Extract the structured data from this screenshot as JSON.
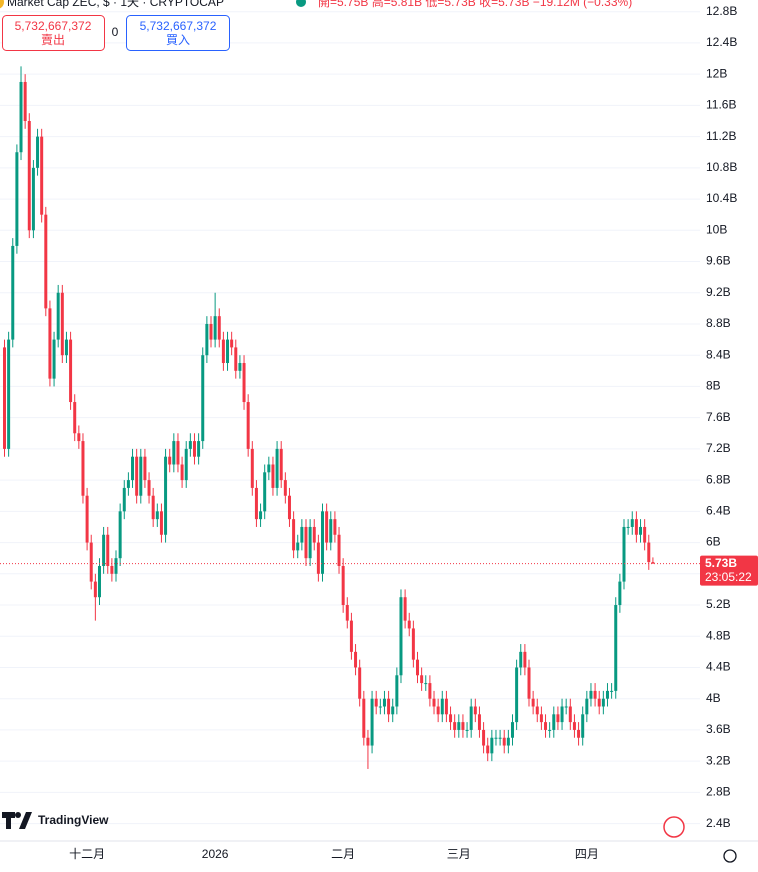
{
  "header": {
    "symbol": "Market Cap ZEC, $ · 1天 · CRYPTOCAP",
    "ohlc": "開=5.75B 高=5.81B 低=5.73B 收=5.73B −19.12M (−0.33%)"
  },
  "trade": {
    "sell_price": "5,732,667,372",
    "sell_label": "賣出",
    "spread": "0",
    "buy_price": "5,732,667,372",
    "buy_label": "買入"
  },
  "brand": "TradingView",
  "chart_data": {
    "type": "candlestick",
    "categories": [
      null,
      null,
      null,
      null,
      null,
      null,
      null,
      null,
      null,
      null,
      null,
      null,
      null,
      null,
      null,
      null,
      null,
      null,
      null,
      null,
      "十二月",
      null,
      null,
      null,
      null,
      null,
      null,
      null,
      null,
      null,
      null,
      null,
      null,
      null,
      null,
      null,
      null,
      null,
      null,
      null,
      null,
      null,
      null,
      null,
      null,
      null,
      null,
      null,
      null,
      null,
      null,
      "2026",
      null,
      null,
      null,
      null,
      null,
      null,
      null,
      null,
      null,
      null,
      null,
      null,
      null,
      null,
      null,
      null,
      null,
      null,
      null,
      null,
      null,
      null,
      null,
      null,
      null,
      null,
      null,
      null,
      null,
      null,
      "二月",
      null,
      null,
      null,
      null,
      null,
      null,
      null,
      null,
      null,
      null,
      null,
      null,
      null,
      null,
      null,
      null,
      null,
      null,
      null,
      null,
      null,
      null,
      null,
      null,
      null,
      null,
      null,
      "三月",
      null,
      null,
      null,
      null,
      null,
      null,
      null,
      null,
      null,
      null,
      null,
      null,
      null,
      null,
      null,
      null,
      null,
      null,
      null,
      null,
      null,
      null,
      null,
      null,
      null,
      null,
      null,
      null,
      null,
      null,
      "四月",
      null,
      null,
      null,
      null,
      null,
      null,
      null,
      null,
      null,
      null,
      null,
      null,
      null,
      null,
      null,
      null
    ],
    "open": [
      8.5,
      7.2,
      8.6,
      9.8,
      11.0,
      11.9,
      11.4,
      10.0,
      10.8,
      11.2,
      10.2,
      9.0,
      8.1,
      8.6,
      9.2,
      8.4,
      8.6,
      7.8,
      7.4,
      7.3,
      6.6,
      6.0,
      5.5,
      5.3,
      5.7,
      6.1,
      5.7,
      5.6,
      5.8,
      6.4,
      6.7,
      6.8,
      7.1,
      6.6,
      7.1,
      6.8,
      6.6,
      6.3,
      6.4,
      6.1,
      7.1,
      7.0,
      7.3,
      7.0,
      6.8,
      7.2,
      7.3,
      7.1,
      7.3,
      8.4,
      8.8,
      8.6,
      8.9,
      8.6,
      8.3,
      8.6,
      8.5,
      8.2,
      8.3,
      7.8,
      7.2,
      6.7,
      6.3,
      6.4,
      6.9,
      7.0,
      6.7,
      7.2,
      6.8,
      6.6,
      6.3,
      5.9,
      6.0,
      6.2,
      5.8,
      6.2,
      6.0,
      5.6,
      6.4,
      6.0,
      6.3,
      6.1,
      5.7,
      5.2,
      5.0,
      4.6,
      4.4,
      4.0,
      3.5,
      3.4,
      4.0,
      3.9,
      3.9,
      4.0,
      3.8,
      3.9,
      4.3,
      5.3,
      5.0,
      4.9,
      4.5,
      4.3,
      4.2,
      4.2,
      4.0,
      3.9,
      3.8,
      4.0,
      3.8,
      3.7,
      3.6,
      3.7,
      3.6,
      3.6,
      3.9,
      3.8,
      3.6,
      3.4,
      3.3,
      3.5,
      3.5,
      3.5,
      3.4,
      3.5,
      3.7,
      4.4,
      4.6,
      4.4,
      4.0,
      3.9,
      3.8,
      3.7,
      3.6,
      3.6,
      3.8,
      3.7,
      3.9,
      3.9,
      3.7,
      3.6,
      3.5,
      3.8,
      4.0,
      4.1,
      4.0,
      3.9,
      4.0,
      4.1,
      4.1,
      5.2,
      5.5,
      6.2,
      6.2,
      6.3,
      6.1,
      6.2,
      6.0,
      5.75
    ],
    "high": [
      8.6,
      8.7,
      9.9,
      11.1,
      12.1,
      12.0,
      11.5,
      10.9,
      11.3,
      11.3,
      10.3,
      9.1,
      8.7,
      9.3,
      9.3,
      8.7,
      8.7,
      7.9,
      7.5,
      7.4,
      6.7,
      6.1,
      5.6,
      5.8,
      6.2,
      6.2,
      5.8,
      5.9,
      6.5,
      6.8,
      6.9,
      7.2,
      7.2,
      7.2,
      7.2,
      6.9,
      6.7,
      6.5,
      6.5,
      7.2,
      7.2,
      7.4,
      7.4,
      7.1,
      7.3,
      7.4,
      7.4,
      7.4,
      8.5,
      8.9,
      8.9,
      9.2,
      9.0,
      8.7,
      8.7,
      8.7,
      8.6,
      8.4,
      8.4,
      7.9,
      7.3,
      6.8,
      6.5,
      7.0,
      7.1,
      7.1,
      7.3,
      7.3,
      6.9,
      6.7,
      6.4,
      6.1,
      6.3,
      6.3,
      6.3,
      6.3,
      6.1,
      6.5,
      6.5,
      6.4,
      6.4,
      6.2,
      5.8,
      5.3,
      5.1,
      4.7,
      4.5,
      4.1,
      3.6,
      4.1,
      4.1,
      4.0,
      4.1,
      4.1,
      4.0,
      4.4,
      5.4,
      5.4,
      5.1,
      5.0,
      4.6,
      4.4,
      4.3,
      4.3,
      4.1,
      4.0,
      4.1,
      4.1,
      3.9,
      3.8,
      3.8,
      3.8,
      3.7,
      4.0,
      4.0,
      3.9,
      3.7,
      3.5,
      3.6,
      3.6,
      3.6,
      3.6,
      3.6,
      3.8,
      4.5,
      4.7,
      4.7,
      4.5,
      4.1,
      4.0,
      3.9,
      3.8,
      3.7,
      3.9,
      3.9,
      4.0,
      4.0,
      4.0,
      3.8,
      3.7,
      3.9,
      4.1,
      4.2,
      4.2,
      4.1,
      4.1,
      4.2,
      4.2,
      5.3,
      5.6,
      6.3,
      6.3,
      6.4,
      6.4,
      6.3,
      6.3,
      6.1,
      5.81
    ],
    "low": [
      7.1,
      7.1,
      8.5,
      9.7,
      10.9,
      11.3,
      9.9,
      9.9,
      10.7,
      10.1,
      8.9,
      8.0,
      8.0,
      8.5,
      8.3,
      8.3,
      7.7,
      7.3,
      7.2,
      6.5,
      5.9,
      5.4,
      5.0,
      5.2,
      5.6,
      5.6,
      5.5,
      5.5,
      5.7,
      6.3,
      6.6,
      6.7,
      6.5,
      6.5,
      6.7,
      6.5,
      6.2,
      6.2,
      6.0,
      6.0,
      6.9,
      6.9,
      6.9,
      6.7,
      6.7,
      7.1,
      7.0,
      7.0,
      7.2,
      8.3,
      8.5,
      8.5,
      8.5,
      8.2,
      8.2,
      8.4,
      8.1,
      8.1,
      7.7,
      7.1,
      6.6,
      6.2,
      6.2,
      6.3,
      6.8,
      6.6,
      6.6,
      6.7,
      6.5,
      6.2,
      5.8,
      5.8,
      5.9,
      5.7,
      5.7,
      5.9,
      5.5,
      5.5,
      5.9,
      5.9,
      6.0,
      5.6,
      5.1,
      4.9,
      4.5,
      4.3,
      3.9,
      3.4,
      3.1,
      3.3,
      3.8,
      3.8,
      3.8,
      3.7,
      3.7,
      3.8,
      4.2,
      4.9,
      4.8,
      4.4,
      4.2,
      4.1,
      4.1,
      3.9,
      3.8,
      3.7,
      3.7,
      3.7,
      3.6,
      3.5,
      3.5,
      3.5,
      3.5,
      3.5,
      3.7,
      3.5,
      3.3,
      3.2,
      3.2,
      3.4,
      3.4,
      3.3,
      3.3,
      3.4,
      3.6,
      4.3,
      4.3,
      3.9,
      3.8,
      3.7,
      3.6,
      3.5,
      3.5,
      3.5,
      3.6,
      3.6,
      3.8,
      3.6,
      3.5,
      3.4,
      3.4,
      3.7,
      3.9,
      3.9,
      3.8,
      3.8,
      3.9,
      4.0,
      4.0,
      5.1,
      5.4,
      6.1,
      6.1,
      6.0,
      6.0,
      5.9,
      5.65,
      5.73
    ],
    "close": [
      7.2,
      8.6,
      9.8,
      11.0,
      11.9,
      11.4,
      10.0,
      10.8,
      11.2,
      10.2,
      9.0,
      8.1,
      8.6,
      9.2,
      8.4,
      8.6,
      7.8,
      7.4,
      7.3,
      6.6,
      6.0,
      5.5,
      5.3,
      5.7,
      6.1,
      5.7,
      5.6,
      5.8,
      6.4,
      6.7,
      6.8,
      7.1,
      6.6,
      7.1,
      6.8,
      6.6,
      6.3,
      6.4,
      6.1,
      7.1,
      7.0,
      7.3,
      7.0,
      6.8,
      7.2,
      7.3,
      7.1,
      7.3,
      8.4,
      8.8,
      8.6,
      8.9,
      8.6,
      8.3,
      8.6,
      8.5,
      8.2,
      8.3,
      7.8,
      7.2,
      6.7,
      6.3,
      6.4,
      6.9,
      7.0,
      6.7,
      7.2,
      6.8,
      6.6,
      6.3,
      5.9,
      6.0,
      6.2,
      5.8,
      6.2,
      6.0,
      5.6,
      6.4,
      6.0,
      6.3,
      6.1,
      5.7,
      5.2,
      5.0,
      4.6,
      4.4,
      4.0,
      3.5,
      3.4,
      4.0,
      3.9,
      3.9,
      4.0,
      3.8,
      3.9,
      4.3,
      5.3,
      5.0,
      4.9,
      4.5,
      4.3,
      4.2,
      4.2,
      4.0,
      3.9,
      3.8,
      4.0,
      3.8,
      3.7,
      3.6,
      3.7,
      3.6,
      3.6,
      3.9,
      3.8,
      3.6,
      3.4,
      3.3,
      3.5,
      3.5,
      3.5,
      3.4,
      3.5,
      3.7,
      4.4,
      4.6,
      4.4,
      4.0,
      3.9,
      3.8,
      3.7,
      3.6,
      3.6,
      3.8,
      3.7,
      3.9,
      3.9,
      3.7,
      3.6,
      3.5,
      3.8,
      4.0,
      4.1,
      4.0,
      3.9,
      4.0,
      4.1,
      4.1,
      5.2,
      5.5,
      6.2,
      6.2,
      6.3,
      6.1,
      6.2,
      6.0,
      5.75,
      5.73
    ],
    "up_color": "#089981",
    "down_color": "#f23645",
    "ylim": [
      2.19,
      12.95
    ],
    "yticks": [
      {
        "value": 2.4,
        "label": "2.4B"
      },
      {
        "value": 2.8,
        "label": "2.8B"
      },
      {
        "value": 3.2,
        "label": "3.2B"
      },
      {
        "value": 3.6,
        "label": "3.6B"
      },
      {
        "value": 4,
        "label": "4B"
      },
      {
        "value": 4.4,
        "label": "4.4B"
      },
      {
        "value": 4.8,
        "label": "4.8B"
      },
      {
        "value": 5.2,
        "label": "5.2B"
      },
      {
        "value": 5.6,
        "label": "5.6B"
      },
      {
        "value": 6,
        "label": "6B"
      },
      {
        "value": 6.4,
        "label": "6.4B"
      },
      {
        "value": 6.8,
        "label": "6.8B"
      },
      {
        "value": 7.2,
        "label": "7.2B"
      },
      {
        "value": 7.6,
        "label": "7.6B"
      },
      {
        "value": 8,
        "label": "8B"
      },
      {
        "value": 8.4,
        "label": "8.4B"
      },
      {
        "value": 8.8,
        "label": "8.8B"
      },
      {
        "value": 9.2,
        "label": "9.2B"
      },
      {
        "value": 9.6,
        "label": "9.6B"
      },
      {
        "value": 10,
        "label": "10B"
      },
      {
        "value": 10.4,
        "label": "10.4B"
      },
      {
        "value": 10.8,
        "label": "10.8B"
      },
      {
        "value": 11.2,
        "label": "11.2B"
      },
      {
        "value": 11.6,
        "label": "11.6B"
      },
      {
        "value": 12,
        "label": "12B"
      },
      {
        "value": 12.4,
        "label": "12.4B"
      },
      {
        "value": 12.8,
        "label": "12.8B"
      }
    ],
    "grid": true,
    "last_price": {
      "value": 5.73,
      "label": "5.73B"
    },
    "countdown": "23:05:22"
  }
}
